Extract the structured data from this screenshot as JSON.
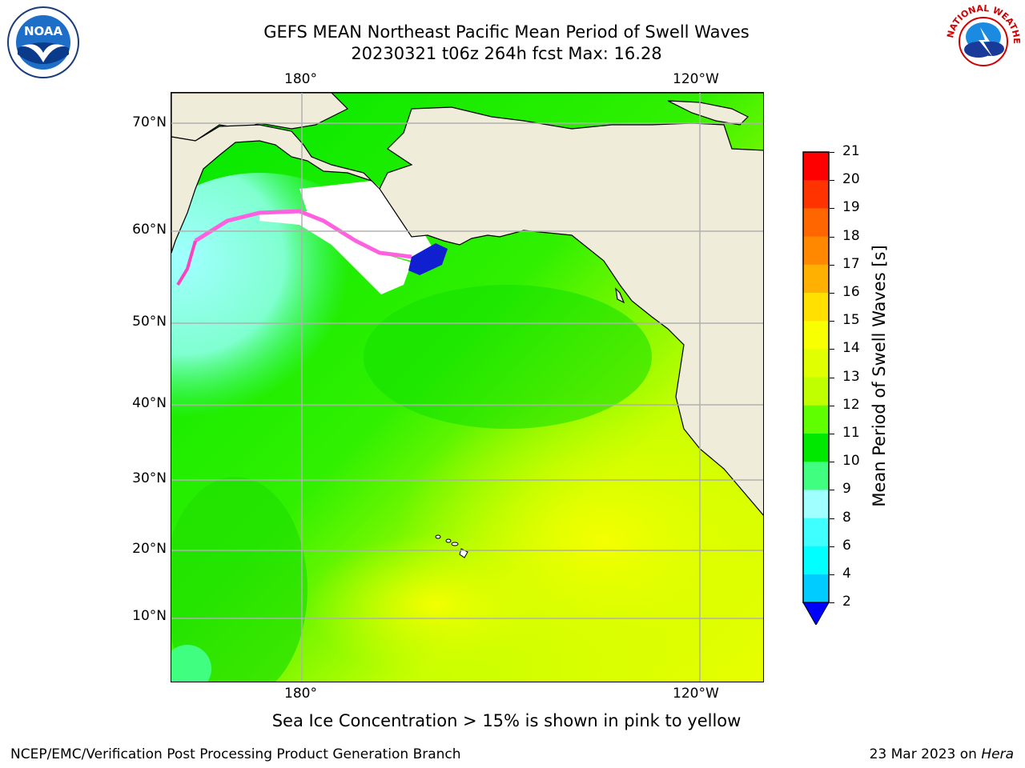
{
  "title": {
    "line1": "GEFS MEAN Northeast Pacific Mean Period of Swell Waves",
    "line2": "20230321 t06z 264h fcst   Max: 16.28"
  },
  "logos": {
    "left": {
      "icon": "noaa-logo-icon",
      "text": "NOAA"
    },
    "right": {
      "icon": "national-weather-service-logo-icon",
      "text": "NATIONAL WEATHER SERVICE"
    }
  },
  "map": {
    "lon_labels_top": [
      "180°",
      "120°W"
    ],
    "lon_labels_bottom": [
      "180°",
      "120°W"
    ],
    "lat_labels": [
      "70°N",
      "60°N",
      "50°N",
      "40°N",
      "30°N",
      "20°N",
      "10°N"
    ],
    "land_color": "#efedda",
    "grid_color": "#b0b0b0"
  },
  "colorbar": {
    "label": "Mean Period of Swell Waves [s]",
    "ticks": [
      "21",
      "20",
      "19",
      "18",
      "17",
      "16",
      "15",
      "14",
      "13",
      "12",
      "11",
      "10",
      "9",
      "8",
      "6",
      "4",
      "2"
    ],
    "colors": [
      "#ff0000",
      "#ff3300",
      "#ff6600",
      "#ff8800",
      "#ffb000",
      "#ffe000",
      "#f8ff00",
      "#e0ff00",
      "#c0ff00",
      "#60ff00",
      "#00e800",
      "#40ff80",
      "#a0ffff",
      "#40ffff",
      "#00ffff",
      "#00ccff",
      "#0066ff"
    ],
    "under_color": "#0000ff"
  },
  "footnote": "Sea Ice Concentration > 15% is shown in pink to yellow",
  "credit_left": "NCEP/EMC/Verification Post Processing Product Generation Branch",
  "credit_right_date": "23 Mar 2023 on ",
  "credit_right_machine": "Hera"
}
